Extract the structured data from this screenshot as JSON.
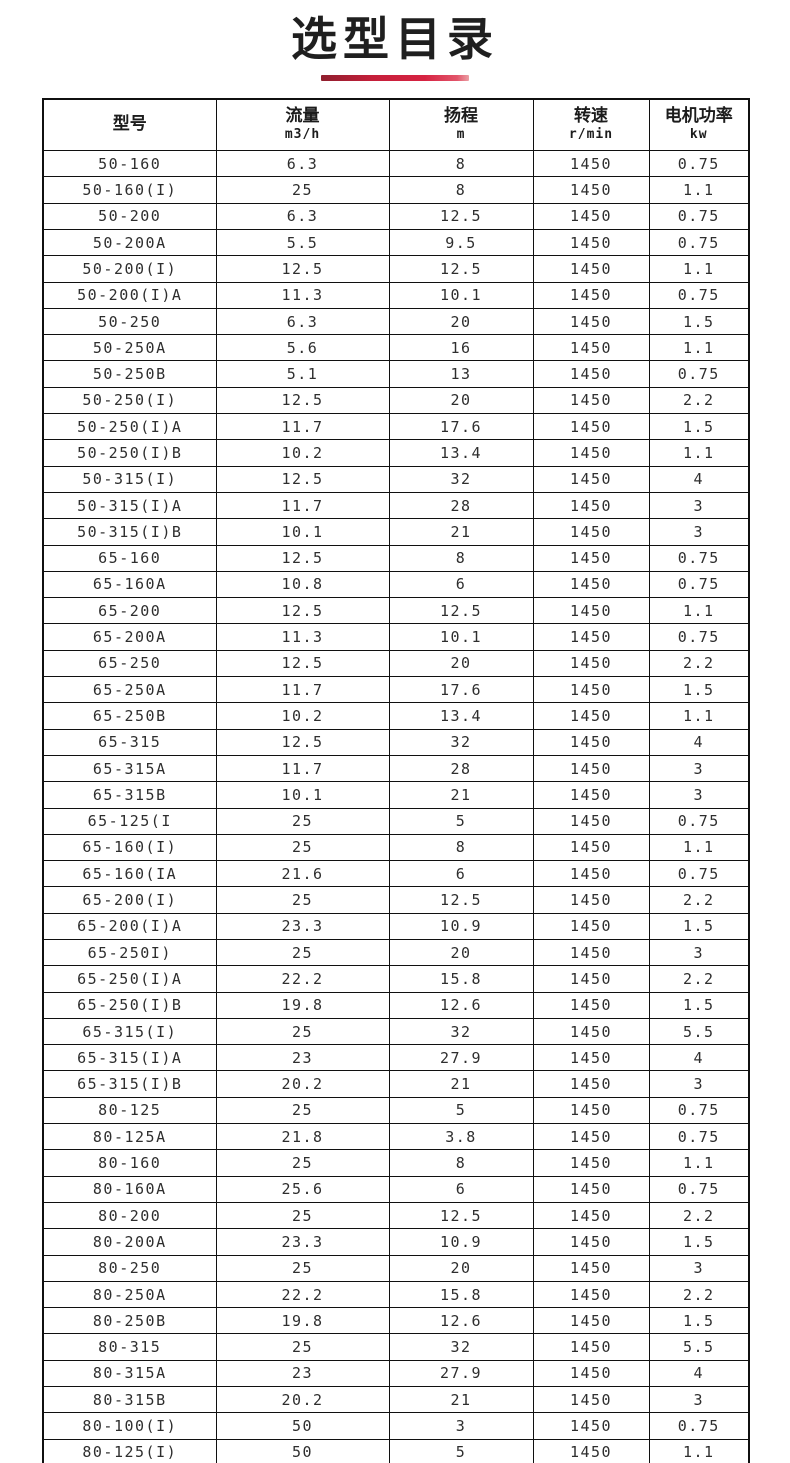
{
  "header": {
    "title": "选型目录"
  },
  "colors": {
    "accent_red": "#d62342",
    "border": "#101010",
    "text": "#2e2e2e"
  },
  "table": {
    "columns": [
      {
        "label": "型号",
        "unit": ""
      },
      {
        "label": "流量",
        "unit": "m3/h"
      },
      {
        "label": "扬程",
        "unit": "m"
      },
      {
        "label": "转速",
        "unit": "r/min"
      },
      {
        "label": "电机功率",
        "unit": "kw"
      }
    ],
    "rows": [
      [
        "50-160",
        "6.3",
        "8",
        "1450",
        "0.75"
      ],
      [
        "50-160(I)",
        "25",
        "8",
        "1450",
        "1.1"
      ],
      [
        "50-200",
        "6.3",
        "12.5",
        "1450",
        "0.75"
      ],
      [
        "50-200A",
        "5.5",
        "9.5",
        "1450",
        "0.75"
      ],
      [
        "50-200(I)",
        "12.5",
        "12.5",
        "1450",
        "1.1"
      ],
      [
        "50-200(I)A",
        "11.3",
        "10.1",
        "1450",
        "0.75"
      ],
      [
        "50-250",
        "6.3",
        "20",
        "1450",
        "1.5"
      ],
      [
        "50-250A",
        "5.6",
        "16",
        "1450",
        "1.1"
      ],
      [
        "50-250B",
        "5.1",
        "13",
        "1450",
        "0.75"
      ],
      [
        "50-250(I)",
        "12.5",
        "20",
        "1450",
        "2.2"
      ],
      [
        "50-250(I)A",
        "11.7",
        "17.6",
        "1450",
        "1.5"
      ],
      [
        "50-250(I)B",
        "10.2",
        "13.4",
        "1450",
        "1.1"
      ],
      [
        "50-315(I)",
        "12.5",
        "32",
        "1450",
        "4"
      ],
      [
        "50-315(I)A",
        "11.7",
        "28",
        "1450",
        "3"
      ],
      [
        "50-315(I)B",
        "10.1",
        "21",
        "1450",
        "3"
      ],
      [
        "65-160",
        "12.5",
        "8",
        "1450",
        "0.75"
      ],
      [
        "65-160A",
        "10.8",
        "6",
        "1450",
        "0.75"
      ],
      [
        "65-200",
        "12.5",
        "12.5",
        "1450",
        "1.1"
      ],
      [
        "65-200A",
        "11.3",
        "10.1",
        "1450",
        "0.75"
      ],
      [
        "65-250",
        "12.5",
        "20",
        "1450",
        "2.2"
      ],
      [
        "65-250A",
        "11.7",
        "17.6",
        "1450",
        "1.5"
      ],
      [
        "65-250B",
        "10.2",
        "13.4",
        "1450",
        "1.1"
      ],
      [
        "65-315",
        "12.5",
        "32",
        "1450",
        "4"
      ],
      [
        "65-315A",
        "11.7",
        "28",
        "1450",
        "3"
      ],
      [
        "65-315B",
        "10.1",
        "21",
        "1450",
        "3"
      ],
      [
        "65-125(I",
        "25",
        "5",
        "1450",
        "0.75"
      ],
      [
        "65-160(I)",
        "25",
        "8",
        "1450",
        "1.1"
      ],
      [
        "65-160(IA",
        "21.6",
        "6",
        "1450",
        "0.75"
      ],
      [
        "65-200(I)",
        "25",
        "12.5",
        "1450",
        "2.2"
      ],
      [
        "65-200(I)A",
        "23.3",
        "10.9",
        "1450",
        "1.5"
      ],
      [
        "65-250I)",
        "25",
        "20",
        "1450",
        "3"
      ],
      [
        "65-250(I)A",
        "22.2",
        "15.8",
        "1450",
        "2.2"
      ],
      [
        "65-250(I)B",
        "19.8",
        "12.6",
        "1450",
        "1.5"
      ],
      [
        "65-315(I)",
        "25",
        "32",
        "1450",
        "5.5"
      ],
      [
        "65-315(I)A",
        "23",
        "27.9",
        "1450",
        "4"
      ],
      [
        "65-315(I)B",
        "20.2",
        "21",
        "1450",
        "3"
      ],
      [
        "80-125",
        "25",
        "5",
        "1450",
        "0.75"
      ],
      [
        "80-125A",
        "21.8",
        "3.8",
        "1450",
        "0.75"
      ],
      [
        "80-160",
        "25",
        "8",
        "1450",
        "1.1"
      ],
      [
        "80-160A",
        "25.6",
        "6",
        "1450",
        "0.75"
      ],
      [
        "80-200",
        "25",
        "12.5",
        "1450",
        "2.2"
      ],
      [
        "80-200A",
        "23.3",
        "10.9",
        "1450",
        "1.5"
      ],
      [
        "80-250",
        "25",
        "20",
        "1450",
        "3"
      ],
      [
        "80-250A",
        "22.2",
        "15.8",
        "1450",
        "2.2"
      ],
      [
        "80-250B",
        "19.8",
        "12.6",
        "1450",
        "1.5"
      ],
      [
        "80-315",
        "25",
        "32",
        "1450",
        "5.5"
      ],
      [
        "80-315A",
        "23",
        "27.9",
        "1450",
        "4"
      ],
      [
        "80-315B",
        "20.2",
        "21",
        "1450",
        "3"
      ],
      [
        "80-100(I)",
        "50",
        "3",
        "1450",
        "0.75"
      ],
      [
        "80-125(I)",
        "50",
        "5",
        "1450",
        "1.1"
      ]
    ]
  }
}
